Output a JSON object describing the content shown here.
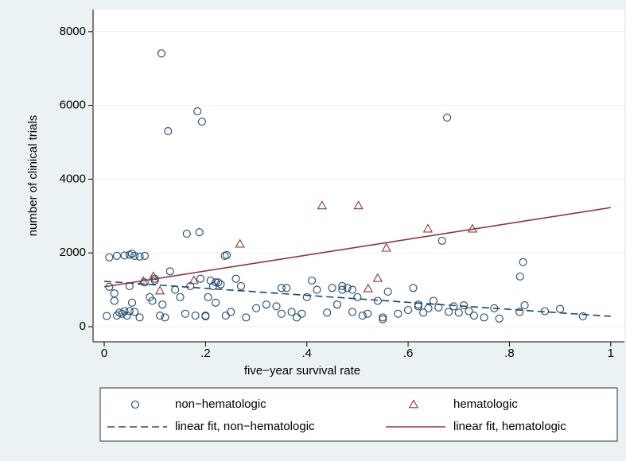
{
  "chart_data": {
    "type": "scatter",
    "x_label": "five−year survival rate",
    "y_label": "number of clinical trials",
    "xlim": [
      -0.022,
      1.027
    ],
    "ylim": [
      -410,
      8600
    ],
    "xticks": [
      0,
      {
        "value": 0.2,
        "label": ".2"
      },
      {
        "value": 0.4,
        "label": ".4"
      },
      {
        "value": 0.6,
        "label": ".6"
      },
      {
        "value": 0.8,
        "label": ".8"
      },
      1
    ],
    "yticks": [
      0,
      2000,
      4000,
      6000,
      8000
    ],
    "grid": true,
    "series": [
      {
        "name": "non−hematologic",
        "color": "#1a476f",
        "marker": "circle",
        "x": [
          0.113,
          0.126,
          0.193,
          0.184,
          0.677,
          0.163,
          0.188,
          0.667,
          0.827,
          0.821,
          0.01,
          0.025,
          0.04,
          0.05,
          0.055,
          0.06,
          0.07,
          0.08,
          0.238,
          0.242,
          0.005,
          0.01,
          0.02,
          0.025,
          0.03,
          0.035,
          0.04,
          0.045,
          0.05,
          0.055,
          0.06,
          0.07,
          0.08,
          0.09,
          0.095,
          0.1,
          0.11,
          0.115,
          0.12,
          0.13,
          0.14,
          0.15,
          0.16,
          0.17,
          0.18,
          0.19,
          0.2,
          0.205,
          0.21,
          0.215,
          0.22,
          0.225,
          0.23,
          0.24,
          0.25,
          0.26,
          0.27,
          0.28,
          0.3,
          0.32,
          0.34,
          0.35,
          0.36,
          0.37,
          0.38,
          0.4,
          0.41,
          0.42,
          0.44,
          0.45,
          0.46,
          0.47,
          0.48,
          0.49,
          0.5,
          0.51,
          0.52,
          0.54,
          0.55,
          0.56,
          0.58,
          0.6,
          0.61,
          0.62,
          0.63,
          0.64,
          0.65,
          0.66,
          0.68,
          0.69,
          0.7,
          0.71,
          0.72,
          0.73,
          0.75,
          0.77,
          0.78,
          0.82,
          0.83,
          0.87,
          0.9,
          0.945,
          0.02,
          0.05,
          0.1,
          0.2,
          0.22,
          0.35,
          0.39,
          0.47,
          0.49,
          0.55,
          0.62
        ],
        "values": [
          7410,
          5300,
          5560,
          5840,
          5670,
          2520,
          2560,
          2330,
          1750,
          1360,
          1880,
          1920,
          1930,
          1950,
          1980,
          1920,
          1900,
          1920,
          1920,
          1940,
          290,
          1080,
          700,
          300,
          380,
          350,
          420,
          300,
          1100,
          650,
          400,
          250,
          1200,
          800,
          700,
          1300,
          300,
          600,
          250,
          1500,
          1000,
          800,
          350,
          1100,
          300,
          1300,
          280,
          800,
          1250,
          1100,
          650,
          1200,
          1150,
          300,
          400,
          1300,
          1100,
          250,
          500,
          600,
          550,
          350,
          1050,
          400,
          250,
          800,
          1250,
          1000,
          380,
          1050,
          600,
          1000,
          1050,
          400,
          800,
          300,
          350,
          700,
          250,
          950,
          350,
          450,
          1050,
          550,
          380,
          500,
          700,
          520,
          400,
          550,
          380,
          580,
          420,
          300,
          250,
          500,
          220,
          400,
          580,
          420,
          480,
          280,
          900,
          420,
          1250,
          300,
          1200,
          1050,
          350,
          1100,
          1000,
          200,
          600
        ]
      },
      {
        "name": "hematologic",
        "color": "#90353b",
        "marker": "triangle",
        "x": [
          0.077,
          0.097,
          0.11,
          0.177,
          0.268,
          0.43,
          0.502,
          0.557,
          0.521,
          0.54,
          0.639,
          0.727
        ],
        "values": [
          1230,
          1360,
          970,
          1250,
          2240,
          3280,
          3280,
          2130,
          1030,
          1310,
          2650,
          2650
        ]
      },
      {
        "name": "linear fit, non−hematologic",
        "color": "#1a476f",
        "marker": "dashed-line",
        "x": [
          0,
          1
        ],
        "values": [
          1230,
          280
        ]
      },
      {
        "name": "linear fit, hematologic",
        "color": "#90353b",
        "marker": "solid-line",
        "x": [
          0,
          1
        ],
        "values": [
          1080,
          3230
        ]
      }
    ]
  }
}
